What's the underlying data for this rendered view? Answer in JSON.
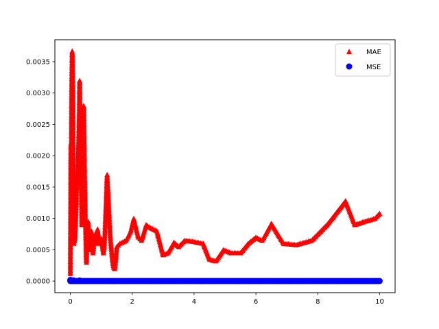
{
  "chart_data": {
    "type": "scatter",
    "title": "",
    "xlabel": "",
    "ylabel": "",
    "xlim": [
      -0.5,
      10.5
    ],
    "ylim": [
      -0.000185,
      0.00385
    ],
    "xticks": [
      0,
      2,
      4,
      6,
      8,
      10
    ],
    "yticks": [
      0.0,
      0.0005,
      0.001,
      0.0015,
      0.002,
      0.0025,
      0.003,
      0.0035
    ],
    "xtick_labels": [
      "0",
      "2",
      "4",
      "6",
      "8",
      "10"
    ],
    "ytick_labels": [
      "0.0000",
      "0.0005",
      "0.0010",
      "0.0015",
      "0.0020",
      "0.0025",
      "0.0030",
      "0.0035"
    ],
    "grid": false,
    "legend_position": "top-right",
    "series": [
      {
        "name": "MAE",
        "marker": "triangle",
        "color": "#ff0000",
        "points": [
          [
            0.0,
            0.00012
          ],
          [
            0.02,
            0.0022
          ],
          [
            0.03,
            0.00117
          ],
          [
            0.04,
            0.00288
          ],
          [
            0.05,
            0.00336
          ],
          [
            0.06,
            0.00367
          ],
          [
            0.07,
            0.00337
          ],
          [
            0.08,
            0.00274
          ],
          [
            0.09,
            0.00195
          ],
          [
            0.1,
            0.00127
          ],
          [
            0.11,
            0.0006
          ],
          [
            0.12,
            0.0009
          ],
          [
            0.14,
            0.00065
          ],
          [
            0.15,
            0.00075
          ],
          [
            0.17,
            0.00095
          ],
          [
            0.19,
            0.0012
          ],
          [
            0.2,
            0.00142
          ],
          [
            0.22,
            0.0016
          ],
          [
            0.24,
            0.0018
          ],
          [
            0.25,
            0.002
          ],
          [
            0.27,
            0.0023
          ],
          [
            0.28,
            0.00258
          ],
          [
            0.29,
            0.00275
          ],
          [
            0.3,
            0.0032
          ],
          [
            0.31,
            0.0028
          ],
          [
            0.33,
            0.0024
          ],
          [
            0.34,
            0.0021
          ],
          [
            0.36,
            0.0014
          ],
          [
            0.37,
            0.0009
          ],
          [
            0.38,
            0.0012
          ],
          [
            0.4,
            0.00162
          ],
          [
            0.41,
            0.0021
          ],
          [
            0.42,
            0.0026
          ],
          [
            0.43,
            0.0028
          ],
          [
            0.45,
            0.0022
          ],
          [
            0.46,
            0.00175
          ],
          [
            0.47,
            0.0015
          ],
          [
            0.48,
            0.0012
          ],
          [
            0.49,
            0.0009
          ],
          [
            0.5,
            0.0007
          ],
          [
            0.51,
            0.00045
          ],
          [
            0.52,
            0.0003
          ],
          [
            0.54,
            0.0006
          ],
          [
            0.56,
            0.0008
          ],
          [
            0.58,
            0.00095
          ],
          [
            0.6,
            0.0007
          ],
          [
            0.62,
            0.0005
          ],
          [
            0.65,
            0.00065
          ],
          [
            0.68,
            0.0008
          ],
          [
            0.7,
            0.0006
          ],
          [
            0.73,
            0.00045
          ],
          [
            0.76,
            0.0006
          ],
          [
            0.8,
            0.00075
          ],
          [
            0.84,
            0.0006
          ],
          [
            0.88,
            0.00083
          ],
          [
            0.92,
            0.0007
          ],
          [
            0.96,
            0.0006
          ],
          [
            1.0,
            0.00068
          ],
          [
            1.04,
            0.00055
          ],
          [
            1.07,
            0.00045
          ],
          [
            1.1,
            0.0006
          ],
          [
            1.12,
            0.0008
          ],
          [
            1.14,
            0.00105
          ],
          [
            1.16,
            0.0013
          ],
          [
            1.18,
            0.0016
          ],
          [
            1.19,
            0.0017
          ],
          [
            1.22,
            0.0014
          ],
          [
            1.25,
            0.0011
          ],
          [
            1.28,
            0.0008
          ],
          [
            1.31,
            0.0006
          ],
          [
            1.34,
            0.00045
          ],
          [
            1.37,
            0.0003
          ],
          [
            1.4,
            0.00022
          ],
          [
            1.43,
            0.0002
          ],
          [
            1.46,
            0.0003
          ],
          [
            1.5,
            0.00055
          ],
          [
            1.6,
            0.0006
          ],
          [
            1.8,
            0.00065
          ],
          [
            1.95,
            0.0008
          ],
          [
            2.05,
            0.001
          ],
          [
            2.2,
            0.0007
          ],
          [
            2.3,
            0.00065
          ],
          [
            2.45,
            0.0009
          ],
          [
            2.6,
            0.00085
          ],
          [
            2.8,
            0.0008
          ],
          [
            3.0,
            0.00042
          ],
          [
            3.15,
            0.00045
          ],
          [
            3.35,
            0.00062
          ],
          [
            3.5,
            0.00055
          ],
          [
            3.7,
            0.00065
          ],
          [
            4.0,
            0.00063
          ],
          [
            4.3,
            0.0006
          ],
          [
            4.5,
            0.00035
          ],
          [
            4.7,
            0.00032
          ],
          [
            4.95,
            0.0005
          ],
          [
            5.2,
            0.00045
          ],
          [
            5.5,
            0.00045
          ],
          [
            5.75,
            0.0006
          ],
          [
            6.0,
            0.0007
          ],
          [
            6.2,
            0.00065
          ],
          [
            6.5,
            0.00092
          ],
          [
            6.9,
            0.0006
          ],
          [
            7.3,
            0.00058
          ],
          [
            7.8,
            0.00065
          ],
          [
            8.3,
            0.0009
          ],
          [
            8.9,
            0.00128
          ],
          [
            9.2,
            0.0009
          ],
          [
            9.5,
            0.00095
          ],
          [
            9.85,
            0.001
          ],
          [
            10.0,
            0.00108
          ]
        ]
      },
      {
        "name": "MSE",
        "marker": "circle",
        "color": "#0000ff",
        "x_range": [
          0,
          10
        ],
        "spikes": [
          [
            0.0,
            1.8e-05
          ],
          [
            0.1,
            1.2e-05
          ],
          [
            0.3,
            1e-05
          ]
        ],
        "baseline": 1e-06
      }
    ],
    "legend": [
      {
        "label": "MAE",
        "marker": "triangle",
        "color": "#ff0000"
      },
      {
        "label": "MSE",
        "marker": "circle",
        "color": "#0000ff"
      }
    ]
  }
}
